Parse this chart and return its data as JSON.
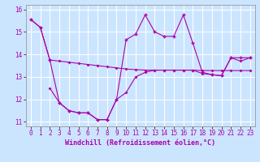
{
  "xlabel": "Windchill (Refroidissement éolien,°C)",
  "background_color": "#cce5ff",
  "grid_color": "#ffffff",
  "line_color": "#aa00aa",
  "xlim": [
    -0.5,
    23.5
  ],
  "ylim": [
    10.8,
    16.2
  ],
  "yticks": [
    11,
    12,
    13,
    14,
    15,
    16
  ],
  "xticks": [
    0,
    1,
    2,
    3,
    4,
    5,
    6,
    7,
    8,
    9,
    10,
    11,
    12,
    13,
    14,
    15,
    16,
    17,
    18,
    19,
    20,
    21,
    22,
    23
  ],
  "line1_x": [
    0,
    1,
    2,
    3,
    4,
    5,
    6,
    7,
    8,
    9,
    10,
    11,
    12,
    13,
    14,
    15,
    16,
    17,
    18,
    19,
    20,
    21,
    22,
    23
  ],
  "line1_y": [
    15.55,
    15.2,
    13.75,
    13.7,
    13.65,
    13.6,
    13.55,
    13.5,
    13.45,
    13.4,
    13.35,
    13.32,
    13.3,
    13.3,
    13.3,
    13.3,
    13.3,
    13.3,
    13.28,
    13.28,
    13.28,
    13.28,
    13.28,
    13.28
  ],
  "line2_x": [
    2,
    3,
    4,
    5,
    6,
    7,
    8,
    9,
    10,
    11,
    12,
    13,
    14,
    15,
    16,
    17,
    18,
    19,
    20,
    21,
    22,
    23
  ],
  "line2_y": [
    12.5,
    11.85,
    11.5,
    11.4,
    11.4,
    11.1,
    11.1,
    12.0,
    12.3,
    13.0,
    13.2,
    13.3,
    13.3,
    13.3,
    13.3,
    13.3,
    13.15,
    13.1,
    13.05,
    13.85,
    13.7,
    13.85
  ],
  "line3_x": [
    0,
    1,
    2,
    3,
    4,
    5,
    6,
    7,
    8,
    9,
    10,
    11,
    12,
    13,
    14,
    15,
    16,
    17,
    18,
    19,
    20,
    21,
    22,
    23
  ],
  "line3_y": [
    15.55,
    15.2,
    13.75,
    11.85,
    11.5,
    11.4,
    11.4,
    11.1,
    11.1,
    12.0,
    14.65,
    14.9,
    15.75,
    15.0,
    14.8,
    14.8,
    15.75,
    14.5,
    13.2,
    13.1,
    13.05,
    13.85,
    13.85,
    13.85
  ],
  "xlabel_fontsize": 6.0,
  "tick_fontsize": 5.5
}
